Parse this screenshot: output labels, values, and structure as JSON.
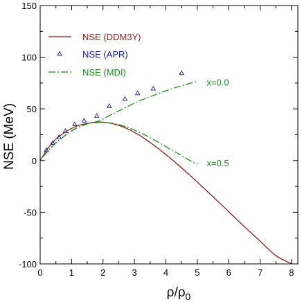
{
  "chart_data": {
    "type": "line",
    "ylabel": "NSE (MeV)",
    "xlabel_base": "ρ/ρ",
    "xlabel_sub": "0",
    "xlim": [
      0,
      8.2
    ],
    "ylim": [
      -100,
      150
    ],
    "xticks": [
      0,
      1,
      2,
      3,
      4,
      5,
      6,
      7,
      8
    ],
    "yticks": [
      -100,
      -50,
      0,
      50,
      100,
      150
    ],
    "legend_position": "top-left",
    "colors": {
      "ddm3y": "#8b1a1a",
      "apr": "#1a1a8c",
      "mdi": "#1f8a1f",
      "axis": "#000000"
    },
    "series": [
      {
        "name": "NSE (DDM3Y)",
        "style": "solid",
        "x": [
          0,
          0.1,
          0.2,
          0.3,
          0.5,
          0.7,
          0.9,
          1.1,
          1.3,
          1.5,
          1.7,
          1.9,
          2.1,
          2.4,
          2.7,
          3.0,
          3.3,
          3.6,
          4.0,
          4.5,
          5.0,
          5.5,
          6.0,
          6.5,
          7.0,
          7.5,
          8.0,
          8.2
        ],
        "y": [
          0,
          5,
          10,
          14,
          20.5,
          25.5,
          29.5,
          32.5,
          34.7,
          36.0,
          36.9,
          37.2,
          36.8,
          35.0,
          31.8,
          27.3,
          21.7,
          15.3,
          5.8,
          -7.0,
          -20.8,
          -35.0,
          -49.5,
          -64.0,
          -78.0,
          -92.0,
          -100.0,
          -104.0
        ]
      },
      {
        "name": "NSE (APR)",
        "style": "markers",
        "x": [
          0.2,
          0.4,
          0.6,
          0.8,
          1.1,
          1.4,
          1.8,
          2.2,
          2.7,
          3.1,
          3.6,
          4.5
        ],
        "y": [
          10,
          17,
          22.5,
          28.5,
          35,
          38.5,
          43,
          52.5,
          59.5,
          65,
          69.5,
          84.5
        ]
      },
      {
        "name": "NSE (MDI)",
        "style": "dashdot",
        "x": [
          0.1,
          0.3,
          0.5,
          0.7,
          0.9,
          1.1,
          1.3,
          1.5,
          1.7,
          1.9,
          2.1,
          2.4,
          2.7,
          3.0,
          3.3,
          3.6,
          4.0,
          4.4,
          4.8,
          5.0
        ],
        "y": [
          4,
          11,
          17,
          22,
          26.8,
          30.5,
          33.3,
          35.5,
          37,
          38.5,
          42,
          46.5,
          51,
          55.5,
          59.5,
          63,
          67.5,
          71.5,
          75,
          76.5
        ]
      },
      {
        "name": "NSE (MDI) x=0.5",
        "style": "dashdot",
        "x": [
          0.1,
          0.3,
          0.5,
          0.7,
          0.9,
          1.1,
          1.3,
          1.5,
          1.7,
          1.9,
          2.1,
          2.4,
          2.7,
          3.0,
          3.3,
          3.6,
          4.0,
          4.4,
          4.8,
          5.0
        ],
        "y": [
          4,
          11,
          17,
          22,
          26.8,
          30.5,
          33.3,
          35.5,
          36.5,
          37,
          36.8,
          35.5,
          33,
          29.5,
          25.2,
          20.5,
          13.5,
          6.5,
          -0.5,
          -3.5
        ]
      }
    ],
    "legend": [
      {
        "label": "NSE (DDM3Y)",
        "key": "ddm3y",
        "symbol": "line"
      },
      {
        "label": "NSE (APR)",
        "key": "apr",
        "symbol": "marker"
      },
      {
        "label": "NSE (MDI)",
        "key": "mdi",
        "symbol": "dashdot"
      }
    ],
    "annotations": [
      {
        "text": "x=0.0",
        "x": 5.3,
        "y": 76
      },
      {
        "text": "x=0.5",
        "x": 5.3,
        "y": -2
      }
    ]
  }
}
